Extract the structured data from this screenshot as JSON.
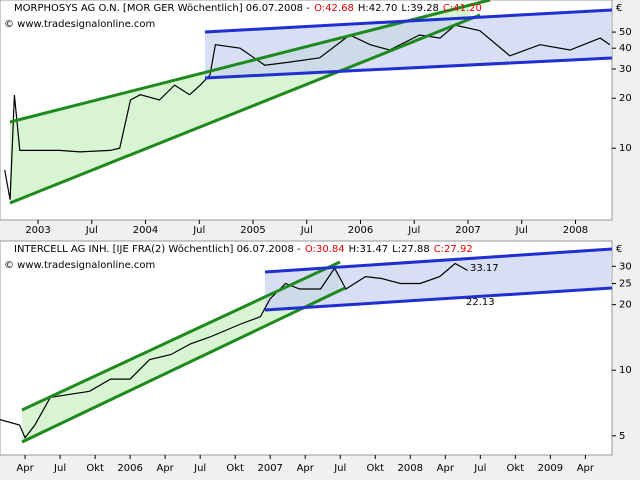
{
  "chart_data": [
    {
      "type": "line",
      "title": "MORPHOSYS AG O.N. [MOR GER  Wöchentlich] 06.07.2008 -",
      "ohlc": [
        "O:42.68",
        "H:42.70",
        "L:39.28",
        "C:41.20"
      ],
      "copyright": "© www.tradesignalonline.com",
      "currency": "€",
      "log_y": true,
      "xlim": [
        2002.646,
        2008.34
      ],
      "ylim": [
        3.7,
        78
      ],
      "yticks": [
        10,
        20,
        30,
        40,
        50
      ],
      "xticks": [
        {
          "value": 2003,
          "label": "2003"
        },
        {
          "value": 2003.5,
          "label": "Jul"
        },
        {
          "value": 2004,
          "label": "2004"
        },
        {
          "value": 2004.5,
          "label": "Jul"
        },
        {
          "value": 2005,
          "label": "2005"
        },
        {
          "value": 2005.5,
          "label": "Jul"
        },
        {
          "value": 2006,
          "label": "2006"
        },
        {
          "value": 2006.5,
          "label": "Jul"
        },
        {
          "value": 2007,
          "label": "2007"
        },
        {
          "value": 2007.5,
          "label": "Jul"
        },
        {
          "value": 2008,
          "label": "2008"
        }
      ],
      "x": [
        2002.69,
        2002.74,
        2002.78,
        2002.83,
        2003.02,
        2003.2,
        2003.39,
        2003.67,
        2003.76,
        2003.86,
        2003.95,
        2004.13,
        2004.27,
        2004.41,
        2004.51,
        2004.6,
        2004.65,
        2004.88,
        2005.11,
        2005.34,
        2005.62,
        2005.9,
        2006.09,
        2006.27,
        2006.55,
        2006.74,
        2006.88,
        2007.11,
        2007.39,
        2007.67,
        2007.95,
        2008.23,
        2008.32
      ],
      "series": [
        {
          "color": "#000000",
          "values": [
            7.4,
            4.9,
            20.9,
            9.7,
            9.7,
            9.7,
            9.5,
            9.7,
            10,
            19.5,
            21,
            19.5,
            24,
            21,
            24,
            27.6,
            42,
            40,
            31.6,
            33,
            35,
            48,
            42,
            39,
            48,
            46,
            55,
            51,
            36,
            42,
            39,
            46,
            42
          ]
        }
      ]
    },
    {
      "type": "line",
      "title": "INTERCELL AG INH. [IJE FRA(2)  Wöchentlich] 06.07.2008 -",
      "ohlc": [
        "O:30.84",
        "H:31.47",
        "L:27.88",
        "C:27.92"
      ],
      "copyright": "© www.tradesignalonline.com",
      "currency": "€",
      "annotations": [
        "33.17",
        "22.13"
      ],
      "log_y": true,
      "xlim": [
        2005.071,
        2009.44
      ],
      "ylim": [
        4.08,
        39.2
      ],
      "yticks": [
        5,
        10,
        20,
        25,
        30
      ],
      "xticks": [
        {
          "value": 2005.25,
          "label": "Apr"
        },
        {
          "value": 2005.5,
          "label": "Jul"
        },
        {
          "value": 2005.75,
          "label": "Okt"
        },
        {
          "value": 2006,
          "label": "2006"
        },
        {
          "value": 2006.25,
          "label": "Apr"
        },
        {
          "value": 2006.5,
          "label": "Jul"
        },
        {
          "value": 2006.75,
          "label": "Okt"
        },
        {
          "value": 2007,
          "label": "2007"
        },
        {
          "value": 2007.25,
          "label": "Apr"
        },
        {
          "value": 2007.5,
          "label": "Jul"
        },
        {
          "value": 2007.75,
          "label": "Okt"
        },
        {
          "value": 2008,
          "label": "2008"
        },
        {
          "value": 2008.25,
          "label": "Apr"
        },
        {
          "value": 2008.5,
          "label": "Jul"
        },
        {
          "value": 2008.75,
          "label": "Okt"
        },
        {
          "value": 2009,
          "label": "2009"
        },
        {
          "value": 2009.25,
          "label": "Apr"
        }
      ],
      "x": [
        2005.07,
        2005.21,
        2005.25,
        2005.32,
        2005.43,
        2005.57,
        2005.71,
        2005.86,
        2006.0,
        2006.14,
        2006.29,
        2006.43,
        2006.57,
        2006.79,
        2006.93,
        2007.0,
        2007.11,
        2007.21,
        2007.36,
        2007.46,
        2007.54,
        2007.68,
        2007.79,
        2007.93,
        2008.07,
        2008.21,
        2008.32,
        2008.41
      ],
      "series": [
        {
          "color": "#000000",
          "values": [
            5.93,
            5.6,
            4.9,
            5.6,
            7.5,
            7.75,
            8.0,
            9.1,
            9.1,
            11.2,
            11.8,
            13.2,
            14.2,
            16.3,
            17.6,
            21.3,
            25.0,
            23.6,
            23.6,
            29.4,
            23.6,
            26.9,
            26.4,
            25.0,
            25.0,
            26.9,
            30.9,
            28.7
          ]
        }
      ]
    }
  ]
}
